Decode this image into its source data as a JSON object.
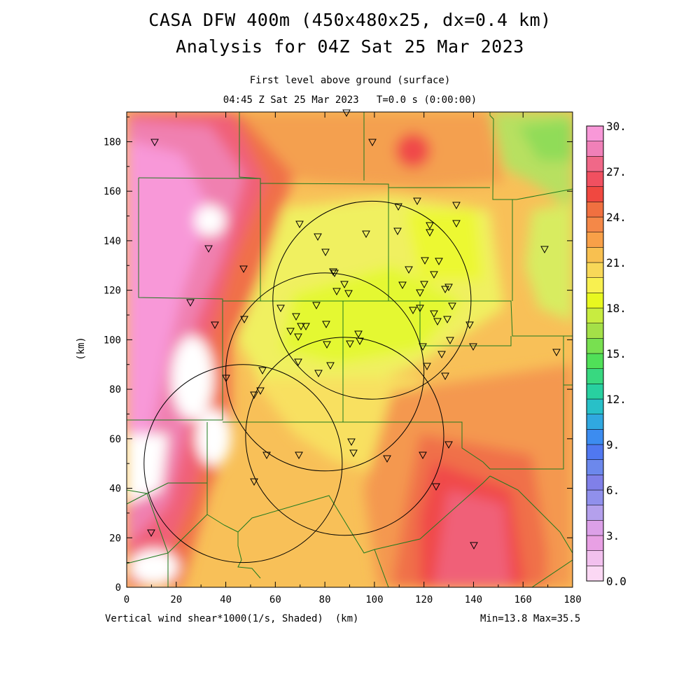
{
  "title": {
    "line1": "CASA DFW 400m (450x480x25, dx=0.4 km)",
    "line2": "Analysis for 04Z Sat 25 Mar 2023"
  },
  "subtitle": {
    "line1": "First level above ground (surface)",
    "line2": "04:45 Z Sat 25 Mar 2023   T=0.0 s (0:00:00)"
  },
  "footer": {
    "left": "Vertical wind shear*1000(1/s, Shaded)  (km)",
    "right": "Min=13.8 Max=35.5"
  },
  "axes": {
    "xlabel": "(km)",
    "ylabel": "(km)",
    "xlim": [
      0,
      180
    ],
    "ylim": [
      0,
      192
    ],
    "xticks": [
      "0",
      "20",
      "40",
      "60",
      "80",
      "100",
      "120",
      "140",
      "160",
      "180"
    ],
    "yticks": [
      "0",
      "20",
      "40",
      "60",
      "80",
      "100",
      "120",
      "140",
      "160",
      "180"
    ]
  },
  "colorbar": {
    "labels": [
      "30.",
      "27.",
      "24.",
      "21.",
      "18.",
      "15.",
      "12.",
      "9.",
      "6.",
      "3.",
      "0.0"
    ],
    "colors": [
      "#fbd8f4",
      "#f2c0ee",
      "#e8a0e4",
      "#dca0e8",
      "#b4a0ec",
      "#9090ec",
      "#8080e8",
      "#6c88ec",
      "#5078f0",
      "#3c8cf0",
      "#30a8e0",
      "#28c0c8",
      "#28d0a0",
      "#38d880",
      "#50e058",
      "#78e050",
      "#a4e048",
      "#c8ec40",
      "#e8f820",
      "#f8f050",
      "#f8d858",
      "#f8c050",
      "#f8a048",
      "#f48848",
      "#f07040",
      "#f04840",
      "#f05060",
      "#f06888",
      "#f080b8",
      "#f898d8"
    ]
  },
  "chart_data": {
    "type": "map",
    "field": "Vertical wind shear*1000 (1/s)",
    "min": 13.8,
    "max": 35.5,
    "range_rings": [
      {
        "center": [
          99,
          116
        ],
        "radius": 40
      },
      {
        "center": [
          80,
          87
        ],
        "radius": 40
      },
      {
        "center": [
          88,
          61
        ],
        "radius": 40
      },
      {
        "center": [
          47,
          50
        ],
        "radius": 40
      }
    ],
    "stations": [
      [
        495,
        161
      ],
      [
        221,
        203
      ],
      [
        532,
        203
      ],
      [
        569,
        295
      ],
      [
        596,
        287
      ],
      [
        652,
        293
      ],
      [
        652,
        319
      ],
      [
        568,
        330
      ],
      [
        614,
        322
      ],
      [
        523,
        334
      ],
      [
        428,
        320
      ],
      [
        454,
        338
      ],
      [
        465,
        360
      ],
      [
        614,
        332
      ],
      [
        298,
        355
      ],
      [
        348,
        384
      ],
      [
        478,
        390
      ],
      [
        584,
        385
      ],
      [
        607,
        372
      ],
      [
        627,
        373
      ],
      [
        476,
        388
      ],
      [
        492,
        406
      ],
      [
        481,
        416
      ],
      [
        498,
        419
      ],
      [
        575,
        407
      ],
      [
        606,
        406
      ],
      [
        620,
        392
      ],
      [
        600,
        418
      ],
      [
        641,
        410
      ],
      [
        636,
        413
      ],
      [
        272,
        432
      ],
      [
        401,
        440
      ],
      [
        452,
        436
      ],
      [
        423,
        452
      ],
      [
        590,
        443
      ],
      [
        600,
        440
      ],
      [
        646,
        437
      ],
      [
        307,
        464
      ],
      [
        349,
        456
      ],
      [
        415,
        473
      ],
      [
        430,
        466
      ],
      [
        437,
        466
      ],
      [
        466,
        463
      ],
      [
        512,
        477
      ],
      [
        620,
        448
      ],
      [
        625,
        459
      ],
      [
        639,
        456
      ],
      [
        671,
        464
      ],
      [
        426,
        481
      ],
      [
        514,
        487
      ],
      [
        467,
        492
      ],
      [
        500,
        491
      ],
      [
        604,
        495
      ],
      [
        643,
        486
      ],
      [
        676,
        495
      ],
      [
        795,
        503
      ],
      [
        778,
        356
      ],
      [
        426,
        517
      ],
      [
        472,
        522
      ],
      [
        610,
        523
      ],
      [
        631,
        506
      ],
      [
        636,
        537
      ],
      [
        375,
        529
      ],
      [
        455,
        533
      ],
      [
        323,
        540
      ],
      [
        372,
        558
      ],
      [
        363,
        564
      ],
      [
        502,
        631
      ],
      [
        641,
        635
      ],
      [
        381,
        650
      ],
      [
        427,
        650
      ],
      [
        505,
        647
      ],
      [
        553,
        655
      ],
      [
        604,
        650
      ],
      [
        363,
        688
      ],
      [
        623,
        695
      ],
      [
        216,
        761
      ],
      [
        677,
        779
      ]
    ]
  }
}
